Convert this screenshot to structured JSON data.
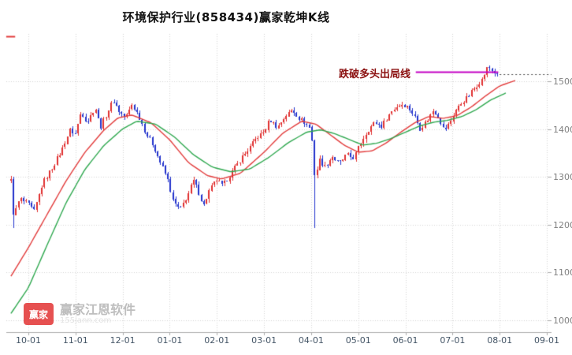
{
  "window": {
    "title": "环境保护行业(858434)赢家乾坤K线"
  },
  "annotation": {
    "label": "跌破多头出局线",
    "price": 1521,
    "start_month": 8.22,
    "end_month": 9.97,
    "text_color": "#8b1010",
    "line_color": "#c400c4"
  },
  "watermark": {
    "logo_text": "赢家",
    "brand": "赢家江恩软件",
    "domain": "155jann.com"
  },
  "chart_data": {
    "type": "candlestick",
    "title": "环境保护行业(858434)赢家乾坤K线",
    "x_tick_labels": [
      "10-01",
      "11-01",
      "12-01",
      "01-01",
      "02-01",
      "03-01",
      "04-01",
      "05-01",
      "06-01",
      "07-01",
      "08-01",
      "09-01"
    ],
    "y_tick_labels": [
      1000,
      1100,
      1200,
      1300,
      1400,
      1500
    ],
    "ylim": [
      975,
      1600
    ],
    "grid": true,
    "legend": "none",
    "candles": {
      "count": 190,
      "month_range": [
        -0.37,
        9.95
      ],
      "last_close": 1516,
      "wiggle": {
        "close": 10,
        "wick": 7
      },
      "close_anchors": [
        [
          -0.37,
          1292
        ],
        [
          -0.31,
          1218
        ],
        [
          -0.18,
          1255
        ],
        [
          0.0,
          1243
        ],
        [
          0.12,
          1227
        ],
        [
          0.3,
          1286
        ],
        [
          0.5,
          1318
        ],
        [
          0.7,
          1355
        ],
        [
          0.88,
          1398
        ],
        [
          1.0,
          1391
        ],
        [
          1.12,
          1438
        ],
        [
          1.25,
          1415
        ],
        [
          1.42,
          1447
        ],
        [
          1.53,
          1404
        ],
        [
          1.66,
          1431
        ],
        [
          1.8,
          1462
        ],
        [
          1.93,
          1437
        ],
        [
          2.06,
          1424
        ],
        [
          2.2,
          1452
        ],
        [
          2.35,
          1427
        ],
        [
          2.5,
          1391
        ],
        [
          2.65,
          1367
        ],
        [
          2.8,
          1331
        ],
        [
          2.95,
          1297
        ],
        [
          3.08,
          1247
        ],
        [
          3.22,
          1231
        ],
        [
          3.38,
          1261
        ],
        [
          3.5,
          1294
        ],
        [
          3.62,
          1267
        ],
        [
          3.72,
          1241
        ],
        [
          3.85,
          1274
        ],
        [
          4.0,
          1294
        ],
        [
          4.12,
          1281
        ],
        [
          4.3,
          1307
        ],
        [
          4.5,
          1337
        ],
        [
          4.7,
          1361
        ],
        [
          4.85,
          1384
        ],
        [
          5.0,
          1394
        ],
        [
          5.12,
          1421
        ],
        [
          5.28,
          1404
        ],
        [
          5.45,
          1427
        ],
        [
          5.6,
          1441
        ],
        [
          5.75,
          1424
        ],
        [
          5.9,
          1411
        ],
        [
          6.0,
          1401
        ],
        [
          6.08,
          1297
        ],
        [
          6.18,
          1337
        ],
        [
          6.3,
          1321
        ],
        [
          6.45,
          1344
        ],
        [
          6.6,
          1327
        ],
        [
          6.75,
          1347
        ],
        [
          6.9,
          1340
        ],
        [
          7.05,
          1371
        ],
        [
          7.2,
          1397
        ],
        [
          7.35,
          1414
        ],
        [
          7.5,
          1407
        ],
        [
          7.65,
          1431
        ],
        [
          7.8,
          1447
        ],
        [
          7.95,
          1454
        ],
        [
          8.05,
          1447
        ],
        [
          8.2,
          1427
        ],
        [
          8.32,
          1401
        ],
        [
          8.45,
          1417
        ],
        [
          8.6,
          1441
        ],
        [
          8.7,
          1427
        ],
        [
          8.82,
          1397
        ],
        [
          8.95,
          1414
        ],
        [
          9.05,
          1437
        ],
        [
          9.2,
          1457
        ],
        [
          9.35,
          1471
        ],
        [
          9.5,
          1491
        ],
        [
          9.62,
          1504
        ],
        [
          9.75,
          1531
        ],
        [
          9.85,
          1523
        ],
        [
          9.95,
          1516
        ]
      ],
      "low_events": [
        [
          -0.33,
          1193
        ],
        [
          6.07,
          1193
        ]
      ]
    },
    "moving_averages": [
      {
        "name": "ma-red",
        "color": "#e23b3b",
        "points": [
          [
            -0.37,
            1092
          ],
          [
            0.0,
            1152
          ],
          [
            0.4,
            1222
          ],
          [
            0.8,
            1292
          ],
          [
            1.2,
            1352
          ],
          [
            1.6,
            1398
          ],
          [
            1.9,
            1424
          ],
          [
            2.2,
            1430
          ],
          [
            2.6,
            1414
          ],
          [
            3.0,
            1378
          ],
          [
            3.4,
            1330
          ],
          [
            3.8,
            1303
          ],
          [
            4.1,
            1296
          ],
          [
            4.5,
            1308
          ],
          [
            5.0,
            1352
          ],
          [
            5.4,
            1392
          ],
          [
            5.8,
            1417
          ],
          [
            6.1,
            1411
          ],
          [
            6.4,
            1389
          ],
          [
            6.7,
            1367
          ],
          [
            7.0,
            1352
          ],
          [
            7.3,
            1355
          ],
          [
            7.6,
            1372
          ],
          [
            7.9,
            1394
          ],
          [
            8.2,
            1414
          ],
          [
            8.5,
            1427
          ],
          [
            8.8,
            1423
          ],
          [
            9.1,
            1429
          ],
          [
            9.4,
            1447
          ],
          [
            9.7,
            1470
          ],
          [
            10.0,
            1491
          ],
          [
            10.35,
            1503
          ]
        ]
      },
      {
        "name": "ma-green",
        "color": "#2fa84f",
        "points": [
          [
            -0.37,
            1014
          ],
          [
            0.0,
            1068
          ],
          [
            0.4,
            1158
          ],
          [
            0.8,
            1246
          ],
          [
            1.2,
            1316
          ],
          [
            1.6,
            1366
          ],
          [
            2.0,
            1401
          ],
          [
            2.3,
            1417
          ],
          [
            2.7,
            1411
          ],
          [
            3.1,
            1384
          ],
          [
            3.5,
            1347
          ],
          [
            3.9,
            1321
          ],
          [
            4.3,
            1311
          ],
          [
            4.7,
            1317
          ],
          [
            5.1,
            1341
          ],
          [
            5.5,
            1371
          ],
          [
            5.9,
            1394
          ],
          [
            6.2,
            1399
          ],
          [
            6.5,
            1391
          ],
          [
            6.8,
            1379
          ],
          [
            7.1,
            1367
          ],
          [
            7.4,
            1371
          ],
          [
            7.7,
            1381
          ],
          [
            8.0,
            1394
          ],
          [
            8.3,
            1407
          ],
          [
            8.6,
            1415
          ],
          [
            8.9,
            1419
          ],
          [
            9.2,
            1427
          ],
          [
            9.5,
            1441
          ],
          [
            9.8,
            1461
          ],
          [
            10.15,
            1477
          ]
        ]
      }
    ],
    "last_price_line": {
      "price": 1516,
      "style": "dotted",
      "color": "#444444"
    },
    "high_marker": {
      "price": 1595,
      "month_range": [
        -0.47,
        -0.28
      ],
      "color": "#e23b3b"
    },
    "colors": {
      "up": "#e03030",
      "down": "#2233cc",
      "grid": "#d4d4d4",
      "axis": "#aaaaaa",
      "x_label": "#445566",
      "y_label": "#808080"
    }
  }
}
